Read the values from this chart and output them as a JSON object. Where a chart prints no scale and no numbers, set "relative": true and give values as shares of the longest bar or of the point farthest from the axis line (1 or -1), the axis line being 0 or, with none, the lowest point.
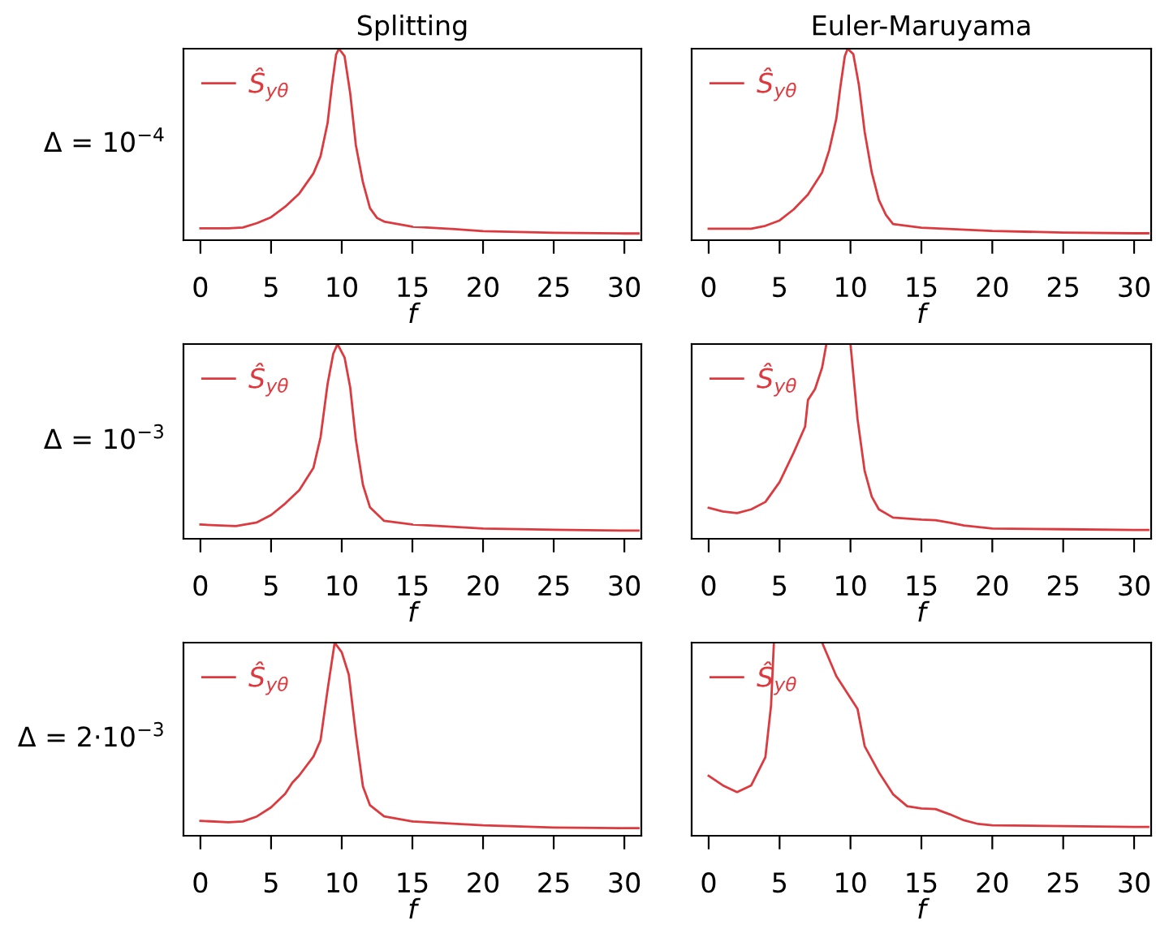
{
  "chart_data": [
    {
      "type": "line",
      "title": "Splitting",
      "ylabel": "Δ = 10$^{−4}$",
      "xlabel": "f",
      "relative": true,
      "legend": "top left",
      "xlim": [
        -1.2,
        31.2
      ],
      "xticks": [
        0,
        5,
        10,
        15,
        20,
        25,
        30
      ],
      "x": [
        0,
        2,
        3,
        4,
        5,
        6,
        7,
        8,
        8.5,
        9,
        9.3,
        9.6,
        9.8,
        10.2,
        10.6,
        11,
        11.5,
        12,
        12.5,
        13,
        15,
        18,
        20,
        25,
        30,
        31
      ],
      "series": [
        {
          "name": "Ŝ$_{yθ}$",
          "color": "#dc3a3f",
          "values": [
            0.062,
            0.062,
            0.066,
            0.089,
            0.12,
            0.175,
            0.244,
            0.349,
            0.438,
            0.612,
            0.806,
            0.969,
            1,
            0.961,
            0.767,
            0.496,
            0.302,
            0.167,
            0.116,
            0.097,
            0.07,
            0.058,
            0.047,
            0.039,
            0.035,
            0.035
          ]
        }
      ]
    },
    {
      "type": "line",
      "title": "Euler-Maruyama",
      "xlabel": "f",
      "relative": true,
      "legend": "top left",
      "xlim": [
        -1.2,
        31.2
      ],
      "xticks": [
        0,
        5,
        10,
        15,
        20,
        25,
        30
      ],
      "x": [
        0,
        3,
        4,
        5,
        6,
        7,
        8,
        8.5,
        9,
        9.3,
        9.6,
        9.8,
        10.2,
        10.6,
        11,
        11.5,
        12,
        12.5,
        13,
        15,
        20,
        25,
        30,
        31
      ],
      "series": [
        {
          "name": "Ŝ$_{yθ}$",
          "color": "#dc3a3f",
          "values": [
            0.06,
            0.06,
            0.075,
            0.103,
            0.161,
            0.238,
            0.354,
            0.47,
            0.634,
            0.807,
            0.961,
            1,
            0.971,
            0.807,
            0.566,
            0.354,
            0.21,
            0.132,
            0.084,
            0.065,
            0.048,
            0.04,
            0.036,
            0.036
          ]
        }
      ]
    },
    {
      "type": "line",
      "ylabel": "Δ = 10$^{−3}$",
      "xlabel": "f",
      "relative": true,
      "legend": "top left",
      "xlim": [
        -1.2,
        31.2
      ],
      "xticks": [
        0,
        5,
        10,
        15,
        20,
        25,
        30
      ],
      "x": [
        0,
        2.5,
        4,
        5,
        6,
        7,
        8,
        8.5,
        9,
        9.4,
        9.7,
        10.2,
        10.6,
        11,
        11.5,
        12,
        13,
        15,
        20,
        25,
        30,
        31
      ],
      "series": [
        {
          "name": "Ŝ$_{yθ}$",
          "color": "#dc3a3f",
          "values": [
            0.073,
            0.065,
            0.084,
            0.122,
            0.181,
            0.25,
            0.365,
            0.521,
            0.796,
            0.95,
            1,
            0.931,
            0.777,
            0.508,
            0.277,
            0.161,
            0.092,
            0.073,
            0.053,
            0.046,
            0.042,
            0.042
          ]
        }
      ]
    },
    {
      "type": "line",
      "xlabel": "f",
      "relative": true,
      "legend": "top left",
      "xlim": [
        -1.2,
        31.2
      ],
      "xticks": [
        0,
        5,
        10,
        15,
        20,
        25,
        30
      ],
      "x": [
        0,
        1,
        2,
        3,
        4,
        5,
        6,
        6.8,
        7,
        7.5,
        8,
        8.3,
        9,
        10,
        10.5,
        11,
        11.5,
        12,
        13,
        15,
        16,
        17,
        18,
        20,
        25,
        30,
        31
      ],
      "series": [
        {
          "name": "Ŝ$_{yθ}$",
          "color": "#dc3a3f",
          "values": [
            0.159,
            0.14,
            0.132,
            0.151,
            0.189,
            0.291,
            0.443,
            0.576,
            0.712,
            0.769,
            0.879,
            1,
            null,
            1,
            0.613,
            0.348,
            0.216,
            0.151,
            0.109,
            0.098,
            0.095,
            0.083,
            0.068,
            0.053,
            0.049,
            0.045,
            0.045
          ]
        }
      ]
    },
    {
      "type": "line",
      "ylabel": "Δ = 2·10$^{−3}$",
      "xlabel": "f",
      "relative": true,
      "legend": "top left",
      "xlim": [
        -1.2,
        31.2
      ],
      "xticks": [
        0,
        5,
        10,
        15,
        20,
        25,
        30
      ],
      "x": [
        0,
        2,
        3,
        4,
        5,
        6,
        6.5,
        7,
        8,
        8.5,
        9,
        9.5,
        10,
        10.5,
        11,
        11.5,
        12,
        13,
        15,
        20,
        25,
        30,
        31
      ],
      "series": [
        {
          "name": "Ŝ$_{yθ}$",
          "color": "#dc3a3f",
          "values": [
            0.077,
            0.07,
            0.074,
            0.1,
            0.147,
            0.217,
            0.274,
            0.313,
            0.41,
            0.494,
            0.757,
            1,
            0.95,
            0.834,
            0.525,
            0.255,
            0.158,
            0.1,
            0.074,
            0.054,
            0.043,
            0.039,
            0.039
          ]
        }
      ]
    },
    {
      "type": "line",
      "xlabel": "f",
      "relative": true,
      "legend": "top left",
      "xlim": [
        -1.2,
        31.2
      ],
      "xticks": [
        0,
        5,
        10,
        15,
        20,
        25,
        30
      ],
      "x": [
        0,
        1,
        2,
        3,
        4,
        4.4,
        4.6,
        6,
        8,
        9,
        10,
        10.5,
        11,
        12,
        13,
        14,
        15,
        16,
        17,
        18,
        19,
        20,
        25,
        30,
        31
      ],
      "series": [
        {
          "name": "Ŝ$_{yθ}$",
          "color": "#dc3a3f",
          "values": [
            0.31,
            0.261,
            0.226,
            0.261,
            0.407,
            0.675,
            1,
            null,
            1,
            0.827,
            0.713,
            0.656,
            0.464,
            0.329,
            0.215,
            0.153,
            0.141,
            0.138,
            0.111,
            0.08,
            0.061,
            0.054,
            0.05,
            0.046,
            0.046
          ]
        }
      ]
    }
  ]
}
